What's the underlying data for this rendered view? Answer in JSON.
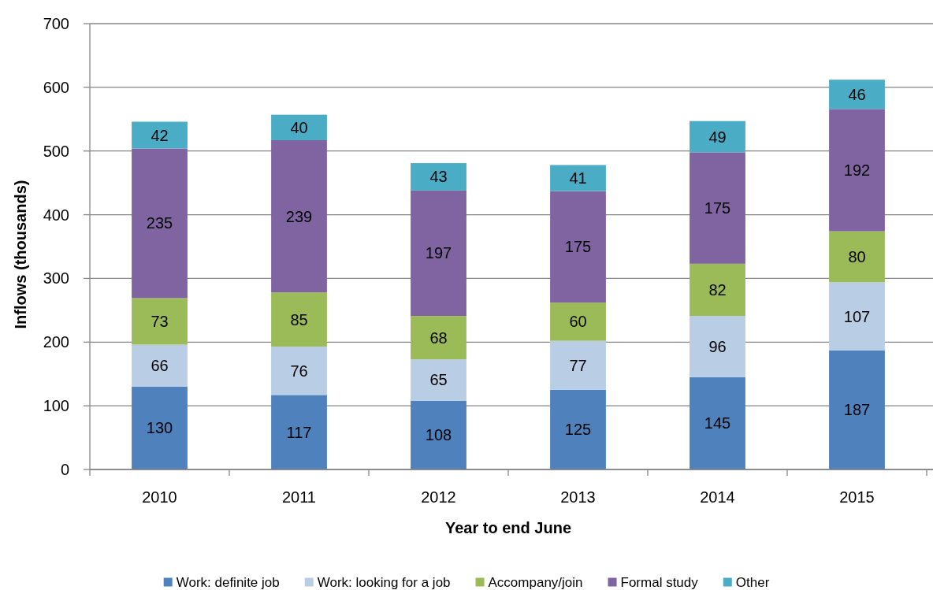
{
  "chart_data": {
    "type": "bar",
    "stacked": true,
    "xlabel": "Year to end June",
    "ylabel": "Inflows (thousands)",
    "categories": [
      "2010",
      "2011",
      "2012",
      "2013",
      "2014",
      "2015"
    ],
    "series": [
      {
        "name": "Work: definite job",
        "color": "#4f81bd",
        "values": [
          130,
          117,
          108,
          125,
          145,
          187
        ]
      },
      {
        "name": "Work: looking for a job",
        "color": "#b9cde5",
        "values": [
          66,
          76,
          65,
          77,
          96,
          107
        ]
      },
      {
        "name": "Accompany/join",
        "color": "#9bbb59",
        "values": [
          73,
          85,
          68,
          60,
          82,
          80
        ]
      },
      {
        "name": "Formal study",
        "color": "#8064a2",
        "values": [
          235,
          239,
          197,
          175,
          175,
          192
        ]
      },
      {
        "name": "Other",
        "color": "#4bacc6",
        "values": [
          42,
          40,
          43,
          41,
          49,
          46
        ]
      }
    ],
    "ylim": [
      0,
      700
    ],
    "yticks": [
      0,
      100,
      200,
      300,
      400,
      500,
      600,
      700
    ],
    "grid": "y",
    "legend": "bottom",
    "data_labels": true
  }
}
